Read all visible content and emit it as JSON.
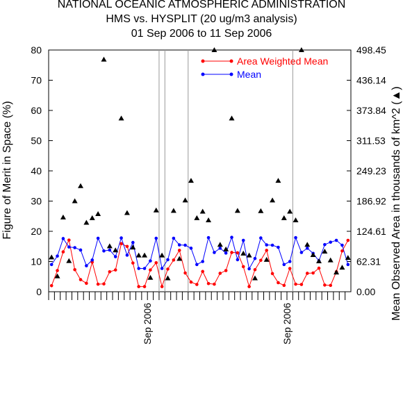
{
  "header": {
    "title": "NATIONAL OCEANIC ATMOSPHERIC ADMINISTRATION",
    "subtitle": "HMS vs. HYSPLIT (20 ug/m3 analysis)",
    "date_range": "01 Sep 2006 to 11 Sep 2006"
  },
  "colors": {
    "area_weighted_mean": "#ff0000",
    "mean": "#0000ff",
    "area_triangles": "#000000",
    "vertical_lines": "#999999"
  },
  "chart_data": {
    "type": "line",
    "xlabel": "",
    "ylabel": "Figure of Merit in Space (%)",
    "y2label": "Mean Observed Area in thousands of km^2 (▲)",
    "ylim": [
      0,
      80
    ],
    "y2lim": [
      0.0,
      498.45
    ],
    "yticks": [
      "0",
      "10",
      "20",
      "30",
      "40",
      "50",
      "60",
      "70",
      "80"
    ],
    "y2ticks": [
      "0.00",
      "62.31",
      "124.61",
      "186.92",
      "249.23",
      "311.53",
      "373.84",
      "436.14",
      "498.45"
    ],
    "xtick_labels": [
      {
        "label": "Sep 2006",
        "index": 16.5
      },
      {
        "label": "Sep 2006",
        "index": 40.5
      }
    ],
    "vertical_markers": [
      18.5,
      19.5,
      23.5,
      41.5
    ],
    "n_points": 52,
    "series": [
      {
        "name": "Area Weighted Mean",
        "values": [
          2.0,
          7.0,
          13.2,
          17.1,
          7.3,
          4.0,
          2.8,
          9.8,
          2.5,
          2.6,
          6.6,
          7.2,
          15.9,
          15.0,
          9.5,
          1.7,
          1.7,
          7.2,
          9.6,
          1.7,
          7.5,
          10.5,
          13.7,
          6.2,
          3.2,
          2.4,
          6.7,
          2.7,
          2.5,
          6.1,
          7.0,
          13.0,
          12.9,
          8.3,
          1.7,
          7.3,
          10.4,
          13.7,
          6.0,
          3.0,
          2.1,
          7.7,
          2.5,
          2.4,
          6.1,
          6.2,
          7.8,
          2.2,
          2.1,
          6.6,
          13.5,
          17.0
        ],
        "marker": "circle",
        "color": "#ff0000"
      },
      {
        "name": "Mean",
        "values": [
          9.0,
          11.8,
          17.6,
          14.8,
          14.6,
          13.8,
          8.6,
          10.5,
          17.7,
          13.5,
          13.8,
          11.6,
          17.8,
          12.1,
          16.3,
          7.7,
          7.7,
          10.2,
          17.7,
          7.7,
          10.6,
          17.7,
          15.5,
          15.4,
          14.4,
          9.0,
          10.0,
          17.9,
          13.0,
          14.4,
          12.8,
          18.0,
          10.6,
          17.0,
          7.6,
          11.0,
          17.8,
          15.5,
          15.4,
          14.7,
          9.0,
          10.0,
          17.9,
          13.0,
          14.4,
          12.7,
          10.2,
          15.6,
          16.4,
          17.0,
          15.4,
          9.0
        ],
        "marker": "circle",
        "color": "#0000ff"
      },
      {
        "name": "Mean Observed Area",
        "axis": "right",
        "values": [
          71.0,
          32.0,
          153.5,
          63.5,
          187.0,
          218.0,
          142.5,
          152.0,
          160.5,
          479.0,
          94.0,
          85.5,
          357.5,
          162.5,
          91.5,
          75.0,
          75.0,
          29.0,
          168.0,
          75.0,
          28.0,
          167.0,
          68.0,
          188.5,
          229.0,
          152.0,
          165.5,
          147.5,
          498.45,
          97.0,
          87.5,
          357.5,
          167.0,
          79.0,
          75.0,
          28.0,
          166.5,
          66.0,
          188.5,
          229.0,
          152.0,
          165.5,
          147.5,
          498.45,
          97.0,
          76.0,
          63.0,
          83.0,
          65.0,
          40.0,
          50.0,
          70.0
        ],
        "marker": "triangle",
        "color": "#000000"
      }
    ],
    "legend": {
      "placement": "top-right",
      "entries": [
        "Area Weighted Mean",
        "Mean"
      ]
    },
    "grid": false
  }
}
